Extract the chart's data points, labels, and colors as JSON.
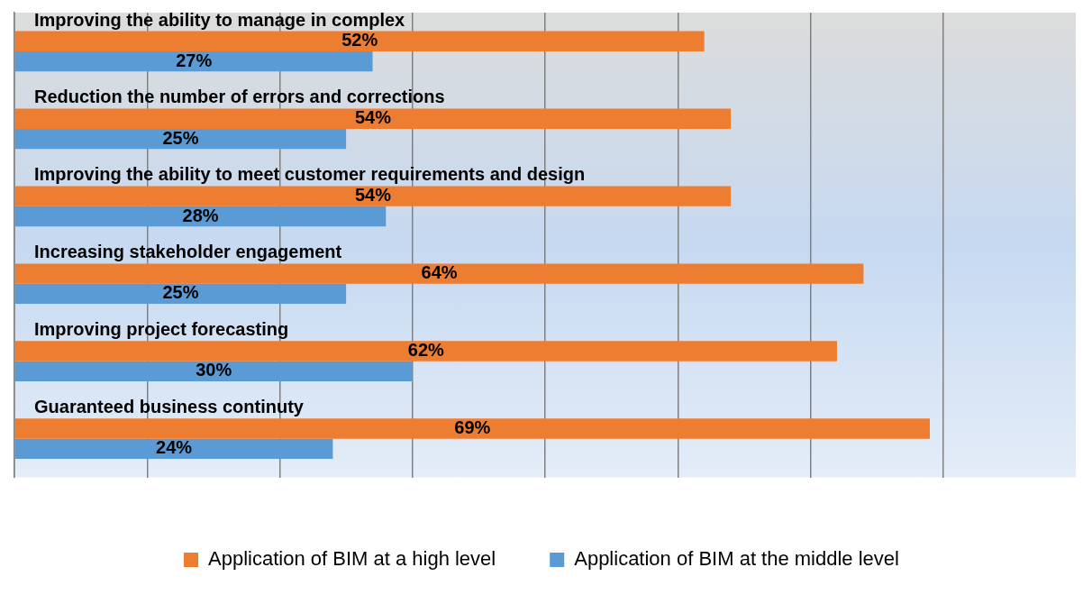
{
  "chart_data": {
    "type": "bar",
    "orientation": "horizontal",
    "categories": [
      "Improving the ability to manage in complex",
      "Reduction the number of errors and corrections",
      "Improving the ability to meet customer requirements and design",
      "Increasing stakeholder engagement",
      "Improving project forecasting",
      "Guaranteed business continuty"
    ],
    "series": [
      {
        "name": "Application of BIM at a high level",
        "color": "#ed7d31",
        "values": [
          52,
          54,
          54,
          64,
          62,
          69
        ],
        "value_labels": [
          "52%",
          "54%",
          "54%",
          "64%",
          "62%",
          "69%"
        ]
      },
      {
        "name": "Application of BIM at the middle level",
        "color": "#5b9bd5",
        "values": [
          27,
          25,
          28,
          25,
          30,
          24
        ],
        "value_labels": [
          "27%",
          "25%",
          "28%",
          "25%",
          "30%",
          "24%"
        ]
      }
    ],
    "xlim": [
      0,
      80
    ],
    "xticks": [
      {
        "value": 0,
        "label": null
      },
      {
        "value": 10,
        "label": null
      },
      {
        "value": 20,
        "label": null
      },
      {
        "value": 30,
        "label": null
      },
      {
        "value": 40,
        "label": null
      },
      {
        "value": 50,
        "label": null
      },
      {
        "value": 60,
        "label": null
      },
      {
        "value": 70,
        "label": null
      }
    ],
    "grid": "x",
    "legend": "bottom"
  }
}
